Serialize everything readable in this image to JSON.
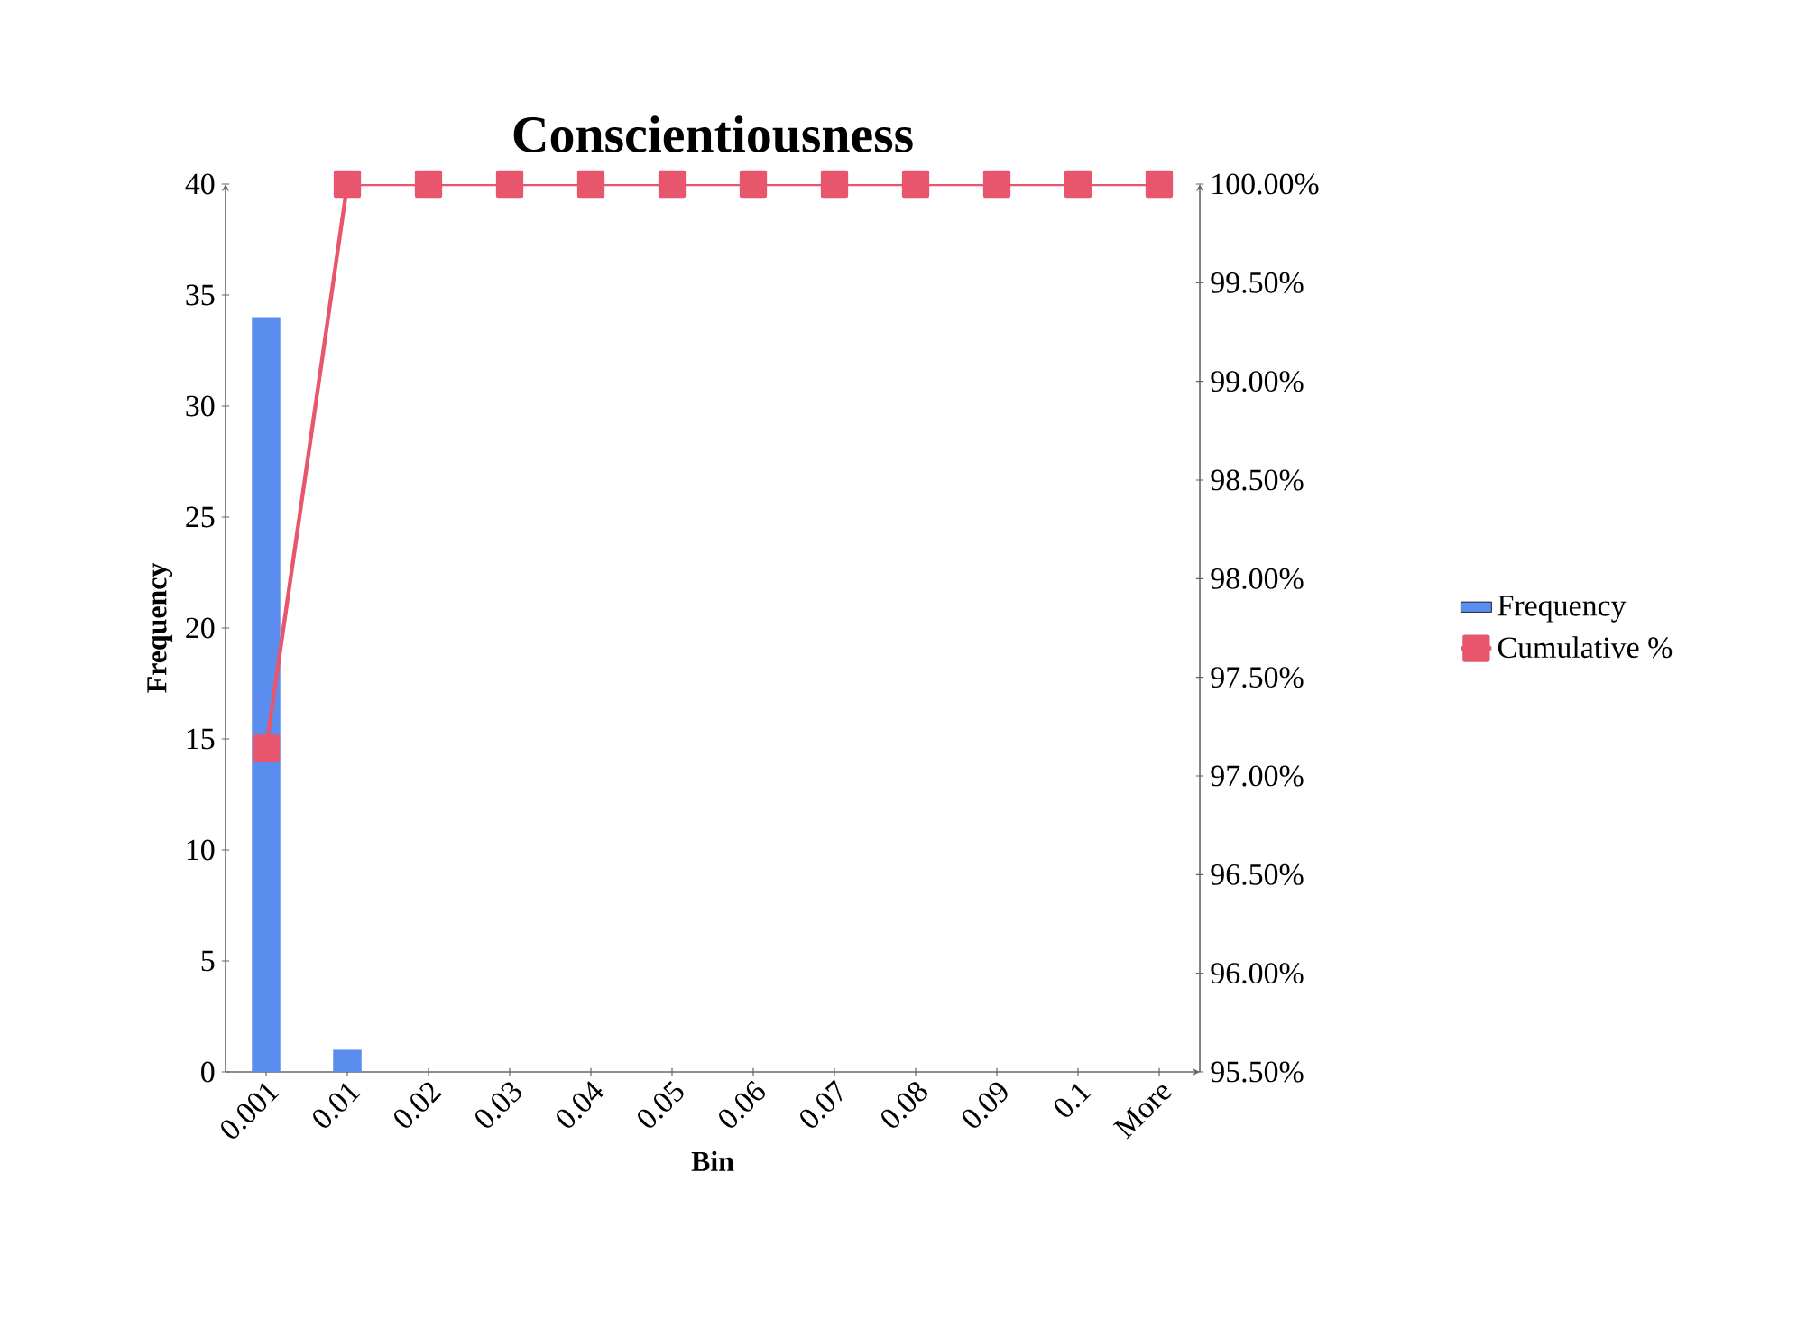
{
  "chart_data": {
    "type": "bar",
    "title": "Conscientiousness",
    "xlabel": "Bin",
    "ylabel": "Frequency",
    "categories": [
      "0.001",
      "0.01",
      "0.02",
      "0.03",
      "0.04",
      "0.05",
      "0.06",
      "0.07",
      "0.08",
      "0.09",
      "0.1",
      "More"
    ],
    "series": [
      {
        "name": "Frequency",
        "color": "#5b8def",
        "values": [
          34,
          1,
          0,
          0,
          0,
          0,
          0,
          0,
          0,
          0,
          0,
          0
        ]
      },
      {
        "name": "Cumulative %",
        "type": "line",
        "axis": "y2",
        "color": "#e8566e",
        "values": [
          97.14,
          100,
          100,
          100,
          100,
          100,
          100,
          100,
          100,
          100,
          100,
          100
        ]
      }
    ],
    "ylim": [
      0,
      40
    ],
    "yticks": [
      0,
      5,
      10,
      15,
      20,
      25,
      30,
      35,
      40
    ],
    "y2lim": [
      95.5,
      100
    ],
    "y2ticks": [
      {
        "value": 95.5,
        "label": "95.50%"
      },
      {
        "value": 96,
        "label": "96.00%"
      },
      {
        "value": 96.5,
        "label": "96.50%"
      },
      {
        "value": 97,
        "label": "97.00%"
      },
      {
        "value": 97.5,
        "label": "97.50%"
      },
      {
        "value": 98,
        "label": "98.00%"
      },
      {
        "value": 98.5,
        "label": "98.50%"
      },
      {
        "value": 99,
        "label": "99.00%"
      },
      {
        "value": 99.5,
        "label": "99.50%"
      },
      {
        "value": 100,
        "label": "100.00%"
      }
    ],
    "marker": "square",
    "legend": "right"
  }
}
